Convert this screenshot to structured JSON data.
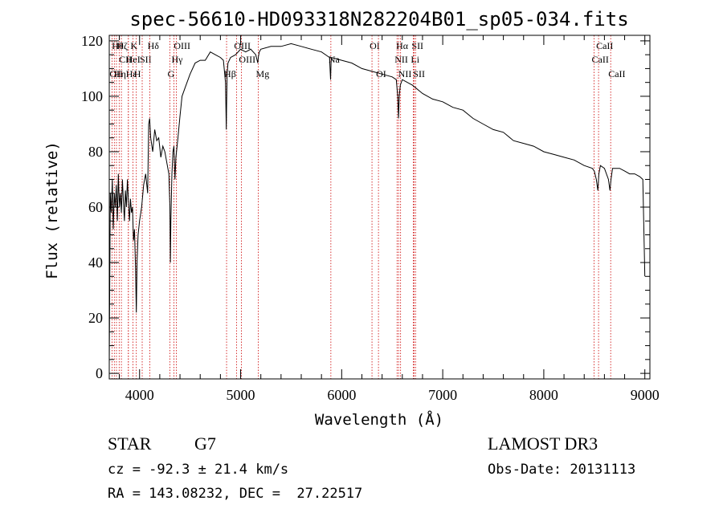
{
  "chart_data": {
    "type": "line",
    "title": "spec-56610-HD093318N282204B01_sp05-034.fits",
    "xlabel": "Wavelength (Å)",
    "ylabel": "Flux (relative)",
    "xlim": [
      3700,
      9050
    ],
    "ylim": [
      -2,
      122
    ],
    "x_ticks": [
      4000,
      5000,
      6000,
      7000,
      8000,
      9000
    ],
    "x_tick_labels": [
      "4000",
      "5000",
      "6000",
      "7000",
      "8000",
      "9000"
    ],
    "y_ticks": [
      0,
      20,
      40,
      60,
      80,
      100,
      120
    ],
    "y_tick_labels": [
      "0",
      "20",
      "40",
      "60",
      "80",
      "100",
      "120"
    ],
    "series": [
      {
        "x": [
          3700,
          3710,
          3720,
          3730,
          3740,
          3750,
          3760,
          3770,
          3780,
          3790,
          3800,
          3810,
          3820,
          3830,
          3840,
          3850,
          3860,
          3870,
          3880,
          3890,
          3900,
          3910,
          3920,
          3930,
          3940,
          3950,
          3960,
          3968,
          3975,
          3985,
          4000,
          4020,
          4040,
          4060,
          4080,
          4090,
          4100,
          4110,
          4130,
          4150,
          4170,
          4190,
          4210,
          4230,
          4250,
          4270,
          4290,
          4300,
          4305,
          4310,
          4320,
          4330,
          4340,
          4350,
          4360,
          4380,
          4400,
          4420,
          4450,
          4500,
          4550,
          4600,
          4650,
          4700,
          4750,
          4800,
          4830,
          4850,
          4858,
          4861,
          4866,
          4875,
          4900,
          4950,
          5000,
          5050,
          5100,
          5150,
          5170,
          5175,
          5185,
          5200,
          5300,
          5400,
          5500,
          5600,
          5700,
          5800,
          5880,
          5890,
          5895,
          5900,
          6000,
          6100,
          6200,
          6300,
          6400,
          6500,
          6540,
          6555,
          6563,
          6570,
          6580,
          6600,
          6700,
          6800,
          6900,
          7000,
          7100,
          7200,
          7300,
          7400,
          7500,
          7600,
          7700,
          7800,
          7900,
          8000,
          8100,
          8200,
          8300,
          8400,
          8480,
          8500,
          8520,
          8535,
          8545,
          8560,
          8600,
          8640,
          8655,
          8665,
          8680,
          8700,
          8750,
          8800,
          8850,
          8900,
          8950,
          8980,
          9000
        ],
        "y": [
          3,
          65,
          58,
          70,
          52,
          65,
          60,
          68,
          55,
          72,
          60,
          65,
          58,
          70,
          62,
          55,
          66,
          60,
          70,
          62,
          55,
          63,
          58,
          60,
          48,
          52,
          38,
          22,
          40,
          50,
          55,
          60,
          68,
          72,
          65,
          90,
          92,
          85,
          80,
          88,
          84,
          85,
          78,
          82,
          80,
          76,
          72,
          60,
          40,
          55,
          72,
          80,
          82,
          70,
          78,
          85,
          93,
          100,
          103,
          108,
          112,
          113,
          113,
          116,
          115,
          114,
          113,
          105,
          88,
          95,
          108,
          112,
          114,
          115,
          117,
          116,
          117,
          115,
          112,
          114,
          116,
          117,
          118,
          118,
          119,
          118,
          117,
          116,
          114,
          106,
          112,
          114,
          113,
          112,
          110,
          109,
          108,
          107,
          106,
          100,
          92,
          100,
          104,
          106,
          104,
          101,
          99,
          98,
          96,
          95,
          92,
          90,
          88,
          87,
          84,
          83,
          82,
          80,
          79,
          78,
          77,
          75,
          74,
          73,
          70,
          66,
          72,
          75,
          74,
          70,
          66,
          70,
          74,
          74,
          74,
          73,
          72,
          72,
          71,
          70,
          35
        ]
      }
    ],
    "line_markers": [
      {
        "x": 3727,
        "label": "OII",
        "row": 2
      },
      {
        "x": 3750,
        "label": "Hθ",
        "row": 0
      },
      {
        "x": 3771,
        "label": "Hη",
        "row": 2
      },
      {
        "x": 3798,
        "label": "Hζ",
        "row": 0
      },
      {
        "x": 3820,
        "label": "CII",
        "row": 1
      },
      {
        "x": 3889,
        "label": "Hε",
        "row": 2
      },
      {
        "x": 3889,
        "label": "HeI",
        "row": 1
      },
      {
        "x": 3934,
        "label": "K",
        "row": 0
      },
      {
        "x": 3968,
        "label": "H",
        "row": 2
      },
      {
        "x": 4026,
        "label": "SII",
        "row": 1
      },
      {
        "x": 4102,
        "label": "Hδ",
        "row": 0
      },
      {
        "x": 4300,
        "label": "G",
        "row": 2
      },
      {
        "x": 4340,
        "label": "Hγ",
        "row": 1
      },
      {
        "x": 4363,
        "label": "OIII",
        "row": 0
      },
      {
        "x": 4861,
        "label": "Hβ",
        "row": 2
      },
      {
        "x": 4959,
        "label": "OIII",
        "row": 0
      },
      {
        "x": 5007,
        "label": "OIII",
        "row": 1
      },
      {
        "x": 5175,
        "label": "Mg",
        "row": 2
      },
      {
        "x": 5893,
        "label": "Na",
        "row": 1
      },
      {
        "x": 6300,
        "label": "OI",
        "row": 0
      },
      {
        "x": 6364,
        "label": "OI",
        "row": 2
      },
      {
        "x": 6548,
        "label": "NII",
        "row": 1
      },
      {
        "x": 6563,
        "label": "Hα",
        "row": 0
      },
      {
        "x": 6583,
        "label": "NII",
        "row": 2
      },
      {
        "x": 6708,
        "label": "Li",
        "row": 1
      },
      {
        "x": 6716,
        "label": "SII",
        "row": 0
      },
      {
        "x": 6731,
        "label": "SII",
        "row": 2
      },
      {
        "x": 8498,
        "label": "CaII",
        "row": 1
      },
      {
        "x": 8542,
        "label": "CaII",
        "row": 0
      },
      {
        "x": 8662,
        "label": "CaII",
        "row": 2
      }
    ]
  },
  "info": {
    "object_class": "STAR",
    "subclass": "G7",
    "survey": "LAMOST DR3",
    "redshift": "cz = -92.3 ± 21.4 km/s",
    "obs_date": "Obs-Date: 20131113",
    "coords": "RA = 143.08232, DEC =  27.22517"
  }
}
